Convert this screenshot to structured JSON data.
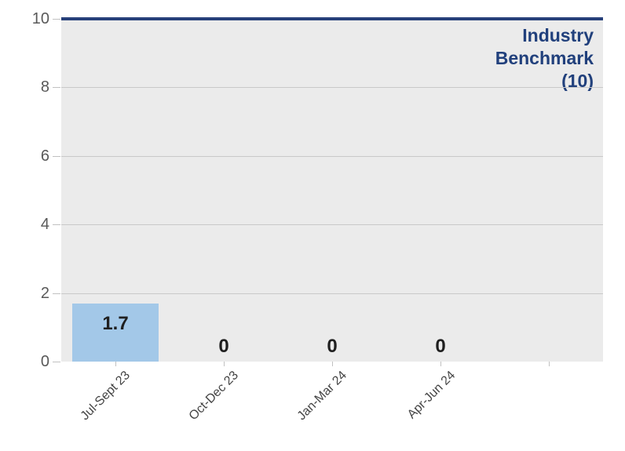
{
  "chart_data": {
    "type": "bar",
    "categories": [
      "Jul-Sept 23",
      "Oct-Dec 23",
      "Jan-Mar 24",
      "Apr-Jun 24",
      ""
    ],
    "values": [
      1.7,
      0,
      0,
      0,
      null
    ],
    "value_labels": [
      "1.7",
      "0",
      "0",
      "0",
      ""
    ],
    "ylim": [
      0,
      10
    ],
    "yticks": [
      0,
      2,
      4,
      6,
      8,
      10
    ],
    "ytick_labels": [
      "0",
      "2",
      "4",
      "6",
      "8",
      "10"
    ],
    "grid": true,
    "legend": "none",
    "benchmark": {
      "value": 10,
      "label": "Industry\nBenchmark\n(10)"
    },
    "colors": {
      "bar": "#a3c8e8",
      "benchmark_line": "#27407a",
      "benchmark_text": "#21407c",
      "plot_bg": "#ebebeb",
      "gridline": "#c9c9c9",
      "tick": "#c1c1c1",
      "y_axis_text": "#595959",
      "x_axis_text": "#444444",
      "value_text": "#1f1f1f"
    }
  }
}
